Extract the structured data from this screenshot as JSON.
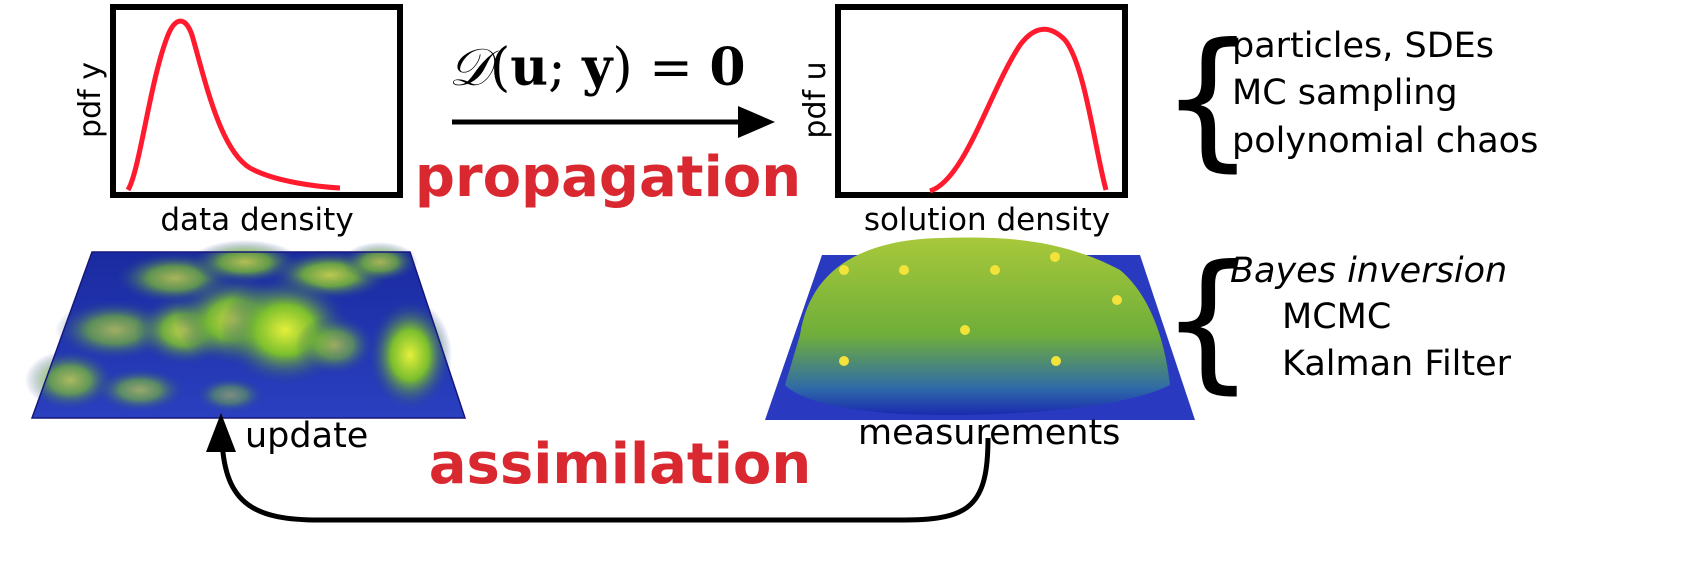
{
  "left_plot": {
    "ylabel": "pdf y",
    "caption": "data density"
  },
  "right_plot": {
    "ylabel": "pdf u",
    "caption": "solution density"
  },
  "equation": {
    "d": "𝒟",
    "open": "(",
    "u": "u",
    "sep": "; ",
    "y": "y",
    "close": ")",
    "eq": " = ",
    "zero": "0"
  },
  "propagation_label": "propagation",
  "assimilation_label": "assimilation",
  "forward_methods": [
    "particles, SDEs",
    "MC sampling",
    "polynomial chaos"
  ],
  "inverse_methods": {
    "title": "Bayes inversion",
    "items": [
      "MCMC",
      "Kalman Filter"
    ]
  },
  "update_label": "update",
  "measurements_label": "measurements",
  "colors": {
    "accent": "#d9282f",
    "curve": "#ff1a2e",
    "surface_low": "#1a1aa8",
    "surface_high": "#c9e83a",
    "measurement_points": "#f2e23a"
  }
}
